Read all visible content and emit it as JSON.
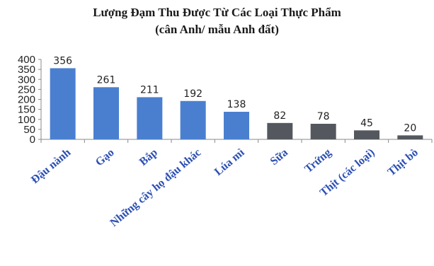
{
  "chart_data": {
    "type": "bar",
    "title": "Lượng Đạm Thu Được Từ Các Loại Thực Phẩm",
    "subtitle": "(cân Anh/ mẫu Anh đất)",
    "xlabel": "",
    "ylabel": "",
    "ylim": [
      0,
      400
    ],
    "yticks": [
      0,
      50,
      100,
      150,
      200,
      250,
      300,
      350,
      400
    ],
    "grid": false,
    "categories": [
      "Đậu nành",
      "Gạo",
      "Bắp",
      "Những cây họ đậu khác",
      "Lúa mì",
      "Sữa",
      "Trứng",
      "Thịt (các loại)",
      "Thịt bò"
    ],
    "values": [
      356,
      261,
      211,
      192,
      138,
      82,
      78,
      45,
      20
    ],
    "colors": [
      "#4a7fcf",
      "#4a7fcf",
      "#4a7fcf",
      "#4a7fcf",
      "#4a7fcf",
      "#54585e",
      "#54585e",
      "#54585e",
      "#54585e"
    ],
    "label_color": "#2b4fb3"
  }
}
